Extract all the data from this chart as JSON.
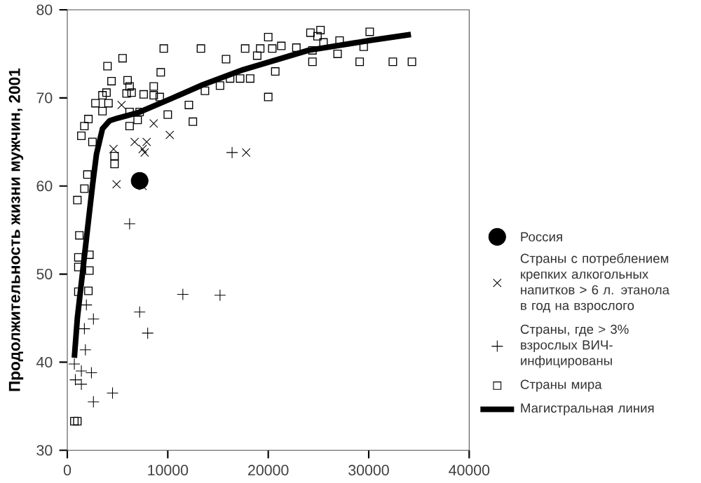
{
  "chart_data": {
    "type": "scatter",
    "ylabel": "Продолжительность жизни мужчин, 2001",
    "xlim": [
      0,
      40000
    ],
    "ylim": [
      30,
      80
    ],
    "xticks": [
      0,
      10000,
      20000,
      30000,
      40000
    ],
    "yticks": [
      30,
      40,
      50,
      60,
      70,
      80
    ],
    "legend": "right",
    "grid": false,
    "series": [
      {
        "name": "Россия",
        "color": "#000000",
        "marker": "circle",
        "x": [
          7200
        ],
        "values": [
          60.6
        ]
      },
      {
        "name": "Страны с потреблением крепких алкогольных напитков > 6 л. этанола в год на взрослого",
        "color": "#000000",
        "marker": "x",
        "x": [
          5400,
          8600,
          10200,
          6700,
          7900,
          7500,
          7700,
          4600,
          4900,
          7500,
          17800
        ],
        "values": [
          69.2,
          67.1,
          65.8,
          65,
          65,
          64.2,
          63.8,
          64.2,
          60.2,
          60,
          63.8
        ]
      },
      {
        "name": "Страны, где > 3% взрослых ВИЧ-инфицированы",
        "color": "#000000",
        "marker": "plus",
        "x": [
          16400,
          6200,
          11500,
          15200,
          7200,
          8000,
          2600,
          1700,
          1800,
          700,
          1400,
          2400,
          1400,
          800,
          4500,
          2600,
          1900
        ],
        "values": [
          63.8,
          55.7,
          47.7,
          47.6,
          45.7,
          43.3,
          44.9,
          43.8,
          41.4,
          39.8,
          39,
          38.8,
          37.5,
          38,
          36.5,
          35.5,
          46.5
        ]
      },
      {
        "name": "Страны мира",
        "color": "#000000",
        "marker": "square",
        "x": [
          4000,
          5500,
          9600,
          13300,
          17700,
          19200,
          20000,
          20400,
          21300,
          22800,
          24200,
          25200,
          24900,
          25500,
          27100,
          30100,
          29500,
          26900,
          24400,
          24400,
          29100,
          32400,
          34300,
          18900,
          15800,
          20700,
          20000,
          17200,
          18200,
          16200,
          15200,
          13700,
          12100,
          12500,
          10000,
          9300,
          8600,
          8600,
          9200,
          7600,
          6200,
          6000,
          6400,
          5900,
          4400,
          3900,
          3500,
          2800,
          4100,
          3500,
          2100,
          1700,
          1400,
          2500,
          6200,
          7200,
          6200,
          7000,
          4700,
          4700,
          2000,
          1700,
          1000,
          1200,
          1100,
          2200,
          2200,
          1100,
          1100,
          2100,
          1000,
          700
        ],
        "values": [
          73.6,
          74.5,
          75.6,
          75.6,
          75.6,
          75.6,
          76.9,
          75.6,
          75.9,
          75.7,
          77.4,
          77.7,
          77,
          76.3,
          76.5,
          77.5,
          75.8,
          75,
          75.4,
          74.1,
          74.1,
          74.1,
          74.1,
          74.8,
          74.4,
          73,
          70.1,
          72.2,
          72.2,
          72.2,
          71.4,
          70.8,
          69.2,
          67.3,
          68.1,
          72.9,
          71.3,
          70.3,
          70.1,
          70.4,
          71.3,
          72,
          70.6,
          70.5,
          71.9,
          70.6,
          70.3,
          69.4,
          69.4,
          68.5,
          67.6,
          66.8,
          65.7,
          65,
          68.4,
          68.4,
          66.8,
          67.5,
          63.4,
          62.5,
          61.3,
          59.7,
          58.4,
          54.4,
          51.9,
          52.2,
          50.4,
          50.8,
          48,
          48.1,
          33.3,
          33.3
        ]
      },
      {
        "name": "Магистральная линия",
        "type": "line",
        "color": "#000000",
        "marker": "none",
        "x": [
          700,
          1000,
          1500,
          2100,
          2500,
          2900,
          3500,
          4200,
          5000,
          7000,
          10500,
          13500,
          17500,
          24000,
          30000,
          34200
        ],
        "values": [
          40.5,
          45,
          50,
          56,
          60,
          63.6,
          66.5,
          67.4,
          67.7,
          68.3,
          70,
          71.5,
          73.2,
          75.4,
          76.5,
          77.2
        ]
      }
    ]
  }
}
